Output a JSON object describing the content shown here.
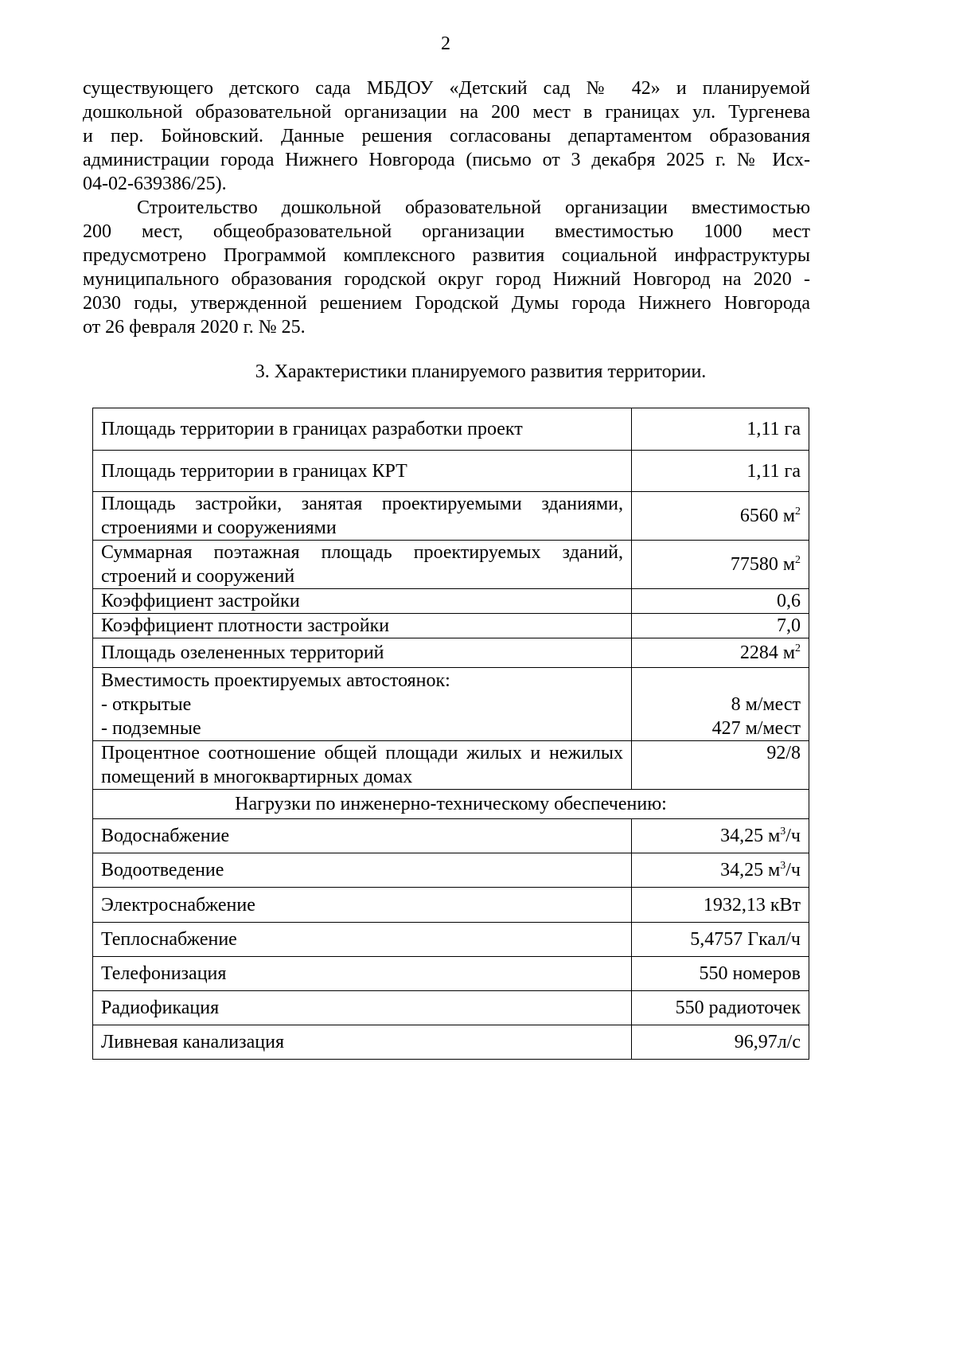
{
  "page_number": "2",
  "paragraph1": [
    "существующего детского сада МБДОУ «Детский сад № 42» и планируемой",
    "дошкольной образовательной организации на 200 мест в границах ул. Тургенева",
    "и пер. Бойновский. Данные решения согласованы департаментом образования",
    "администрации города Нижнего Новгорода (письмо от 3 декабря 2025 г. № Исх-",
    "04-02-639386/25)."
  ],
  "paragraph2": [
    "Строительство дошкольной образовательной организации вместимостью",
    "200 мест, общеобразовательной организации вместимостью 1000 мест",
    "предусмотрено Программой комплексного развития социальной инфраструктуры",
    "муниципального образования городской округ город Нижний Новгород на 2020 -",
    "2030 годы, утвержденной решением Городской Думы города Нижнего Новгорода",
    "от 26 февраля 2020 г. № 25."
  ],
  "section_heading": "3. Характеристики планируемого развития территории.",
  "table": {
    "rows": [
      {
        "label": "Площадь территории в границах разработки проект",
        "value": "1,11 га"
      },
      {
        "label": "Площадь территории в границах КРТ",
        "value": "1,11 га"
      },
      {
        "label": "Площадь застройки, занятая проектируемыми зданиями, строениями и сооружениями",
        "value": "6560 м",
        "sup": "2"
      },
      {
        "label": "Суммарная поэтажная площадь проектируемых зданий, строений и сооружений",
        "value": "77580 м",
        "sup": "2"
      },
      {
        "label": "Коэффициент застройки",
        "value": "0,6"
      },
      {
        "label": "Коэффициент плотности застройки",
        "value": "7,0"
      },
      {
        "label": "Площадь озелененных территорий",
        "value": "2284 м",
        "sup": "2"
      }
    ],
    "parking": {
      "label": "Вместимость проектируемых автостоянок:",
      "open_label": "- открытые",
      "open_value": "8 м/мест",
      "underground_label": "- подземные",
      "underground_value": "427 м/мест"
    },
    "ratio": {
      "label": "Процентное соотношение общей площади жилых и нежилых помещений в многоквартирных домах",
      "value": "92/8"
    },
    "loads_header": "Нагрузки по инженерно-техническому обеспечению:",
    "loads": [
      {
        "label": "Водоснабжение",
        "value": "34,25 м",
        "sup": "3",
        "suffix": "/ч"
      },
      {
        "label": "Водоотведение",
        "value": "34,25 м",
        "sup": "3",
        "suffix": "/ч"
      },
      {
        "label": "Электроснабжение",
        "value": "1932,13 кВт"
      },
      {
        "label": "Теплоснабжение",
        "value": "5,4757 Гкал/ч"
      },
      {
        "label": "Телефонизация",
        "value": "550 номеров"
      },
      {
        "label": "Радиофикация",
        "value": "550 радиоточек"
      },
      {
        "label": "Ливневая канализация",
        "value": "96,97л/с"
      }
    ]
  }
}
